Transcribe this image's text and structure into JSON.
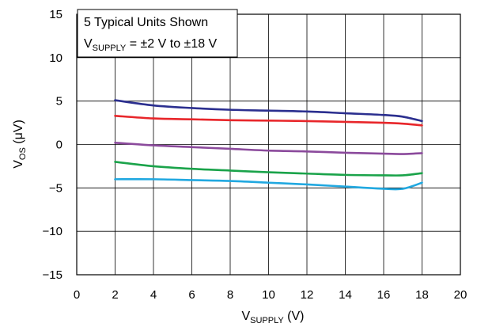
{
  "chart_data": {
    "type": "line",
    "annotation_line1": "5 Typical Units Shown",
    "annotation_line2": {
      "v": "V",
      "sub": "SUPPLY",
      "rest": " = ±2 V to ±18 V"
    },
    "xlabel": {
      "main": "V",
      "sub": "SUPPLY",
      "rest": " (V)"
    },
    "ylabel": {
      "main": "V",
      "sub": "OS",
      "rest": " (μV)"
    },
    "xlim": [
      0,
      20
    ],
    "ylim": [
      -15,
      15
    ],
    "x_ticks": [
      0,
      2,
      4,
      6,
      8,
      10,
      12,
      14,
      16,
      18,
      20
    ],
    "y_ticks": [
      15,
      10,
      5,
      0,
      -5,
      -10,
      -15
    ],
    "x_tick_labels": [
      "0",
      "2",
      "4",
      "6",
      "8",
      "10",
      "12",
      "14",
      "16",
      "18",
      "20"
    ],
    "y_tick_labels": [
      "15",
      "10",
      "5",
      "0",
      "−5",
      "−10",
      "−15"
    ],
    "grid": true,
    "x": [
      2,
      4,
      6,
      8,
      10,
      12,
      14,
      16,
      17,
      18
    ],
    "series": [
      {
        "color": "#2b2f8f",
        "values": [
          5.1,
          4.5,
          4.2,
          4.0,
          3.9,
          3.8,
          3.6,
          3.4,
          3.2,
          2.7
        ]
      },
      {
        "color": "#e8262a",
        "values": [
          3.3,
          3.0,
          2.9,
          2.8,
          2.75,
          2.7,
          2.6,
          2.5,
          2.4,
          2.2
        ]
      },
      {
        "color": "#8b4a9c",
        "values": [
          0.2,
          -0.1,
          -0.3,
          -0.5,
          -0.7,
          -0.8,
          -0.95,
          -1.05,
          -1.1,
          -1.0
        ]
      },
      {
        "color": "#1aa34a",
        "values": [
          -2.0,
          -2.5,
          -2.8,
          -3.0,
          -3.2,
          -3.35,
          -3.5,
          -3.55,
          -3.55,
          -3.3
        ]
      },
      {
        "color": "#21a8e0",
        "values": [
          -4.0,
          -4.0,
          -4.1,
          -4.2,
          -4.4,
          -4.6,
          -4.85,
          -5.1,
          -5.1,
          -4.4
        ]
      }
    ]
  }
}
